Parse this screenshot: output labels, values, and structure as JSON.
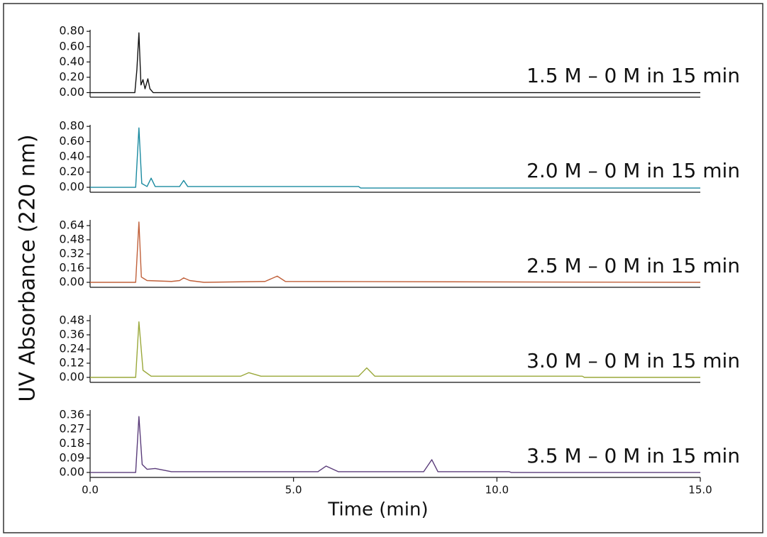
{
  "ylabel": "UV Absorbance (220 nm)",
  "xlabel": "Time (min)",
  "chart_data": [
    {
      "type": "line",
      "annotation": "1.5 M – 0 M in 15 min",
      "color": "#111111",
      "x": [
        0,
        1.1,
        1.15,
        1.2,
        1.25,
        1.3,
        1.35,
        1.42,
        1.47,
        1.55,
        15
      ],
      "values": [
        0,
        0,
        0.3,
        0.78,
        0.1,
        0.17,
        0.05,
        0.18,
        0.05,
        0,
        0
      ],
      "xlim": [
        0,
        15
      ],
      "ylim": [
        -0.06,
        0.82
      ],
      "yticks": [
        {
          "value": 0,
          "label": "0.00"
        },
        {
          "value": 0.2,
          "label": "0.20"
        },
        {
          "value": 0.4,
          "label": "0.40"
        },
        {
          "value": 0.6,
          "label": "0.60"
        },
        {
          "value": 0.8,
          "label": "0.80"
        }
      ]
    },
    {
      "type": "line",
      "annotation": "2.0 M – 0 M in 15 min",
      "color": "#1a8aa0",
      "x": [
        0,
        1.12,
        1.2,
        1.27,
        1.4,
        1.5,
        1.6,
        2.2,
        2.3,
        2.4,
        6.6,
        6.65,
        15
      ],
      "values": [
        0,
        0,
        0.78,
        0.05,
        0.01,
        0.12,
        0.01,
        0.01,
        0.09,
        0.01,
        0.01,
        -0.01,
        -0.01
      ],
      "xlim": [
        0,
        15
      ],
      "ylim": [
        -0.065,
        0.82
      ],
      "yticks": [
        {
          "value": 0,
          "label": "0.00"
        },
        {
          "value": 0.2,
          "label": "0.20"
        },
        {
          "value": 0.4,
          "label": "0.40"
        },
        {
          "value": 0.6,
          "label": "0.60"
        },
        {
          "value": 0.8,
          "label": "0.80"
        }
      ]
    },
    {
      "type": "line",
      "annotation": "2.5 M – 0 M in 15 min",
      "color": "#c0603a",
      "x": [
        0,
        1.12,
        1.2,
        1.26,
        1.4,
        2.0,
        2.2,
        2.3,
        2.45,
        2.8,
        4.3,
        4.6,
        4.8,
        15
      ],
      "values": [
        0,
        0,
        0.68,
        0.06,
        0.02,
        0.01,
        0.02,
        0.05,
        0.02,
        0,
        0.01,
        0.07,
        0.01,
        0
      ],
      "xlim": [
        0,
        15
      ],
      "ylim": [
        -0.056,
        0.704
      ],
      "yticks": [
        {
          "value": 0,
          "label": "0.00"
        },
        0.16,
        0.32,
        0.48,
        0.64
      ]
    },
    {
      "type": "line",
      "annotation": "3.0 M – 0 M in 15 min",
      "color": "#9aa83a",
      "x": [
        0,
        1.12,
        1.2,
        1.3,
        1.5,
        3.7,
        3.9,
        4.2,
        6.6,
        6.8,
        7.0,
        12.1,
        12.15,
        15
      ],
      "values": [
        0,
        0,
        0.47,
        0.06,
        0.01,
        0.01,
        0.04,
        0.01,
        0.01,
        0.08,
        0.01,
        0.01,
        0,
        0
      ],
      "xlim": [
        0,
        15
      ],
      "ylim": [
        -0.042,
        0.528
      ],
      "yticks": [
        {
          "value": 0,
          "label": "0.00"
        },
        0.12,
        0.24,
        0.36,
        0.48
      ]
    },
    {
      "type": "line",
      "annotation": "3.5 M – 0 M in 15 min",
      "color": "#5a3c7a",
      "x": [
        0,
        1.12,
        1.2,
        1.28,
        1.4,
        1.6,
        1.9,
        2.0,
        5.6,
        5.8,
        6.1,
        8.2,
        8.4,
        8.55,
        10.3,
        10.35,
        15
      ],
      "values": [
        0,
        0,
        0.35,
        0.05,
        0.02,
        0.025,
        0.01,
        0.005,
        0.005,
        0.04,
        0.005,
        0.005,
        0.08,
        0.005,
        0.005,
        0,
        0
      ],
      "xlim": [
        0,
        15
      ],
      "ylim": [
        -0.031,
        0.391
      ],
      "yticks": [
        {
          "value": 0,
          "label": "0.00"
        },
        0.09,
        0.18,
        0.27,
        0.36
      ],
      "xticks": [
        {
          "value": 0,
          "label": "0.0"
        },
        {
          "value": 5,
          "label": "5.0"
        },
        {
          "value": 10,
          "label": "10.0"
        },
        {
          "value": 15,
          "label": "15.0"
        }
      ]
    }
  ]
}
